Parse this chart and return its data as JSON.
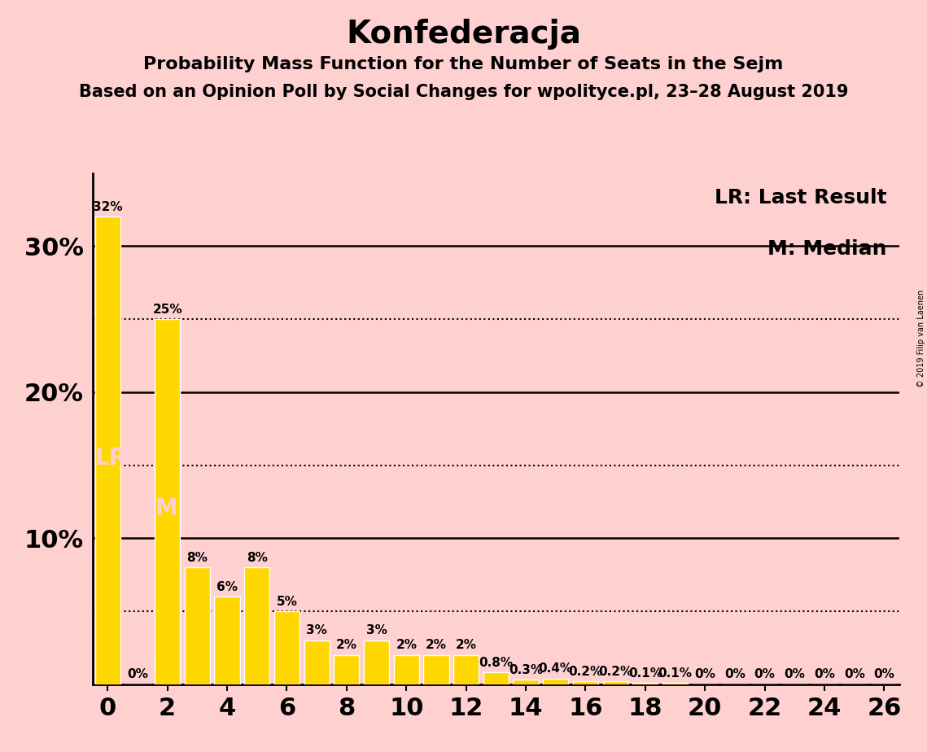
{
  "title": "Konfederacja",
  "subtitle1": "Probability Mass Function for the Number of Seats in the Sejm",
  "subtitle2": "Based on an Opinion Poll by Social Changes for wpolityce.pl, 23–28 August 2019",
  "copyright": "© 2019 Filip van Laenen",
  "bar_color": "#FFD700",
  "bar_edge_color": "#FFFFFF",
  "background_color": "#FFD0D0",
  "x_values": [
    0,
    1,
    2,
    3,
    4,
    5,
    6,
    7,
    8,
    9,
    10,
    11,
    12,
    13,
    14,
    15,
    16,
    17,
    18,
    19,
    20,
    21,
    22,
    23,
    24,
    25,
    26
  ],
  "y_values": [
    32,
    0,
    25,
    8,
    6,
    8,
    5,
    3,
    2,
    3,
    2,
    2,
    2,
    0.8,
    0.3,
    0.4,
    0.2,
    0.2,
    0.1,
    0.1,
    0,
    0,
    0,
    0,
    0,
    0,
    0
  ],
  "y_labels": [
    "32%",
    "0%",
    "25%",
    "8%",
    "6%",
    "8%",
    "5%",
    "3%",
    "2%",
    "3%",
    "2%",
    "2%",
    "2%",
    "0.8%",
    "0.3%",
    "0.4%",
    "0.2%",
    "0.2%",
    "0.1%",
    "0.1%",
    "0%",
    "0%",
    "0%",
    "0%",
    "0%",
    "0%",
    "0%"
  ],
  "xlim": [
    -0.5,
    26.5
  ],
  "ylim": [
    0,
    35
  ],
  "xticks": [
    0,
    2,
    4,
    6,
    8,
    10,
    12,
    14,
    16,
    18,
    20,
    22,
    24,
    26
  ],
  "solid_lines": [
    10,
    20,
    30
  ],
  "dotted_lines": [
    5,
    15,
    25
  ],
  "LR_bar_index": 0,
  "LR_y_pos": 15.5,
  "M_bar_index": 2,
  "M_y_pos": 12.0,
  "title_fontsize": 28,
  "subtitle1_fontsize": 16,
  "subtitle2_fontsize": 15,
  "bar_label_fontsize": 11,
  "legend_fontsize": 18,
  "tick_fontsize": 22
}
